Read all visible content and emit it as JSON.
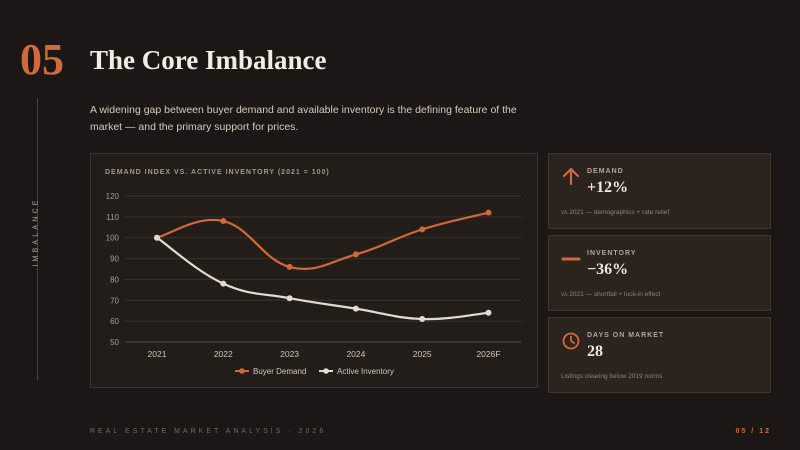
{
  "sidebar": {
    "label": "IMBALANCE"
  },
  "header": {
    "number": "05",
    "title": "The Core Imbalance",
    "subtitle": "A widening gap between buyer demand and available inventory is the defining feature of the market — and the primary support for prices."
  },
  "chart_data": {
    "type": "line",
    "title": "DEMAND INDEX vs. ACTIVE INVENTORY (2021 = 100)",
    "categories": [
      "2021",
      "2022",
      "2023",
      "2024",
      "2025",
      "2026F"
    ],
    "series": [
      {
        "name": "Buyer Demand",
        "values": [
          100,
          108,
          86,
          92,
          104,
          112
        ],
        "color": "#d0683c"
      },
      {
        "name": "Active Inventory",
        "values": [
          100,
          78,
          71,
          66,
          61,
          64
        ],
        "color": "#e3dbd0"
      }
    ],
    "ylim": [
      50,
      120
    ],
    "yticks": [
      50,
      60,
      70,
      80,
      90,
      100,
      110,
      120
    ],
    "grid": true,
    "legend": "bottom"
  },
  "cards": [
    {
      "icon": "arrow-up-icon",
      "label": "DEMAND",
      "value": "+12%",
      "note": "vs 2021 — demographics + rate relief",
      "color": "#d0683c"
    },
    {
      "icon": "minus-icon",
      "label": "INVENTORY",
      "value": "−36%",
      "note": "vs 2021 — shortfall + lock-in effect",
      "color": "#d0683c"
    },
    {
      "icon": "clock-icon",
      "label": "DAYS ON MARKET",
      "value": "28",
      "note": "Listings clearing below 2019 norms",
      "color": "#d0683c"
    }
  ],
  "footer": {
    "left": "REAL ESTATE MARKET ANALYSIS · 2026",
    "right": "05 / 12"
  }
}
